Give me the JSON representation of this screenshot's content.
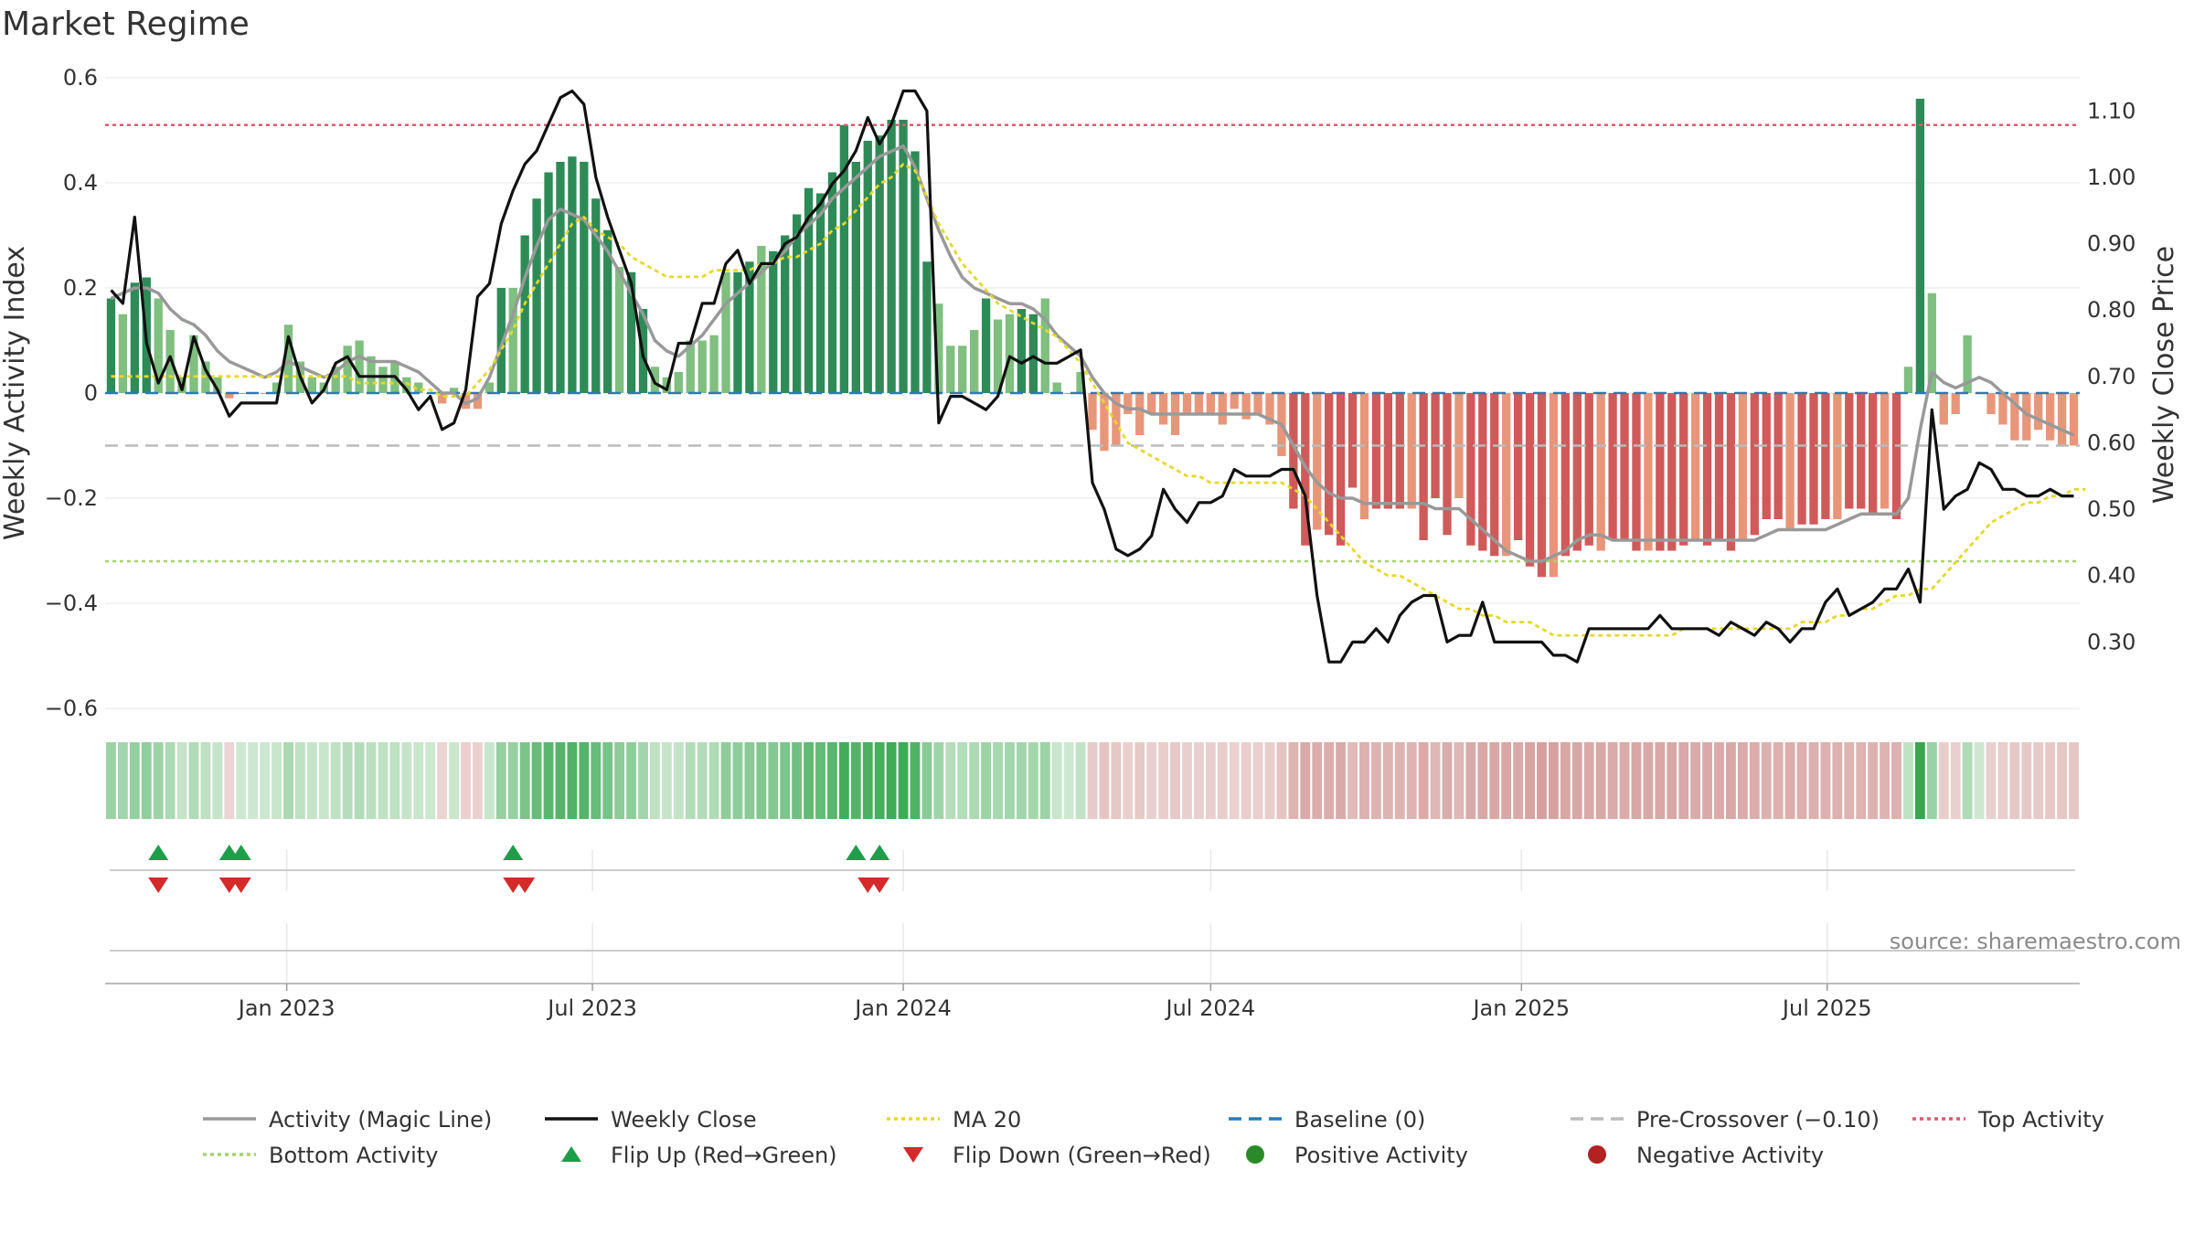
{
  "title": "Market Regime",
  "source": "source: sharemaestro.com",
  "colors": {
    "pos_strong": "#2e8b57",
    "pos_weak": "#7fbf7f",
    "neg_strong": "#d05a5a",
    "neg_weak": "#e8967a",
    "magic": "#999999",
    "close": "#111111",
    "ma20": "#e6d829",
    "baseline": "#2a7ab8",
    "precross": "#bbbbbb",
    "top": "#e05a6e",
    "bottom": "#a7d26b",
    "flip_up": "#1f9e4a",
    "flip_down": "#d42a2a",
    "pos_dot": "#2a8a2a",
    "neg_dot": "#b22222"
  },
  "chart_data": {
    "type": "bar",
    "start_date": "2022-09-19",
    "interval": "weekly",
    "y_left": {
      "label": "Weekly Activity Index",
      "range": [
        -0.6,
        0.6
      ],
      "ticks": [
        0.6,
        0.4,
        0.2,
        0,
        -0.2,
        -0.4,
        -0.6
      ],
      "tick_labels": [
        "0.6",
        "0.4",
        "0.2",
        "0",
        "−0.2",
        "−0.4",
        "−0.6"
      ]
    },
    "y_right": {
      "label": "Weekly Close Price",
      "range": [
        0.2,
        1.15
      ],
      "ticks": [
        1.1,
        1.0,
        0.9,
        0.8,
        0.7,
        0.6,
        0.5,
        0.4,
        0.3
      ],
      "tick_labels": [
        "1.10",
        "1.00",
        "0.90",
        "0.80",
        "0.70",
        "0.60",
        "0.50",
        "0.40",
        "0.30"
      ]
    },
    "x_ticks": [
      {
        "date": "2023-01-01",
        "label": "Jan 2023"
      },
      {
        "date": "2023-07-01",
        "label": "Jul 2023"
      },
      {
        "date": "2024-01-01",
        "label": "Jan 2024"
      },
      {
        "date": "2024-07-01",
        "label": "Jul 2024"
      },
      {
        "date": "2025-01-01",
        "label": "Jan 2025"
      },
      {
        "date": "2025-07-01",
        "label": "Jul 2025"
      }
    ],
    "reference_lines": {
      "baseline": 0,
      "pre_crossover": -0.1,
      "top_activity": 0.51,
      "bottom_activity": -0.32
    },
    "activity": [
      0.18,
      0.15,
      0.21,
      0.22,
      0.18,
      0.12,
      0.03,
      0.11,
      0.06,
      0.03,
      -0.01,
      0,
      0,
      0,
      0.02,
      0.13,
      0.06,
      0.03,
      0.02,
      0.05,
      0.09,
      0.1,
      0.07,
      0.05,
      0.06,
      0.03,
      0.02,
      0,
      -0.02,
      0.01,
      -0.03,
      -0.03,
      0.02,
      0.2,
      0.2,
      0.3,
      0.37,
      0.42,
      0.44,
      0.45,
      0.44,
      0.37,
      0.31,
      0.24,
      0.23,
      0.16,
      0.05,
      0.03,
      0.04,
      0.1,
      0.1,
      0.11,
      0.23,
      0.23,
      0.25,
      0.28,
      0.27,
      0.3,
      0.34,
      0.39,
      0.38,
      0.42,
      0.51,
      0.44,
      0.48,
      0.49,
      0.52,
      0.52,
      0.46,
      0.25,
      0.17,
      0.09,
      0.09,
      0.12,
      0.18,
      0.14,
      0.15,
      0.16,
      0.15,
      0.18,
      0.02,
      0,
      0.04,
      -0.07,
      -0.11,
      -0.1,
      -0.04,
      -0.08,
      -0.04,
      -0.06,
      -0.08,
      -0.04,
      -0.04,
      -0.04,
      -0.06,
      -0.03,
      -0.05,
      -0.04,
      -0.06,
      -0.12,
      -0.22,
      -0.29,
      -0.26,
      -0.27,
      -0.29,
      -0.18,
      -0.24,
      -0.22,
      -0.22,
      -0.22,
      -0.22,
      -0.28,
      -0.2,
      -0.27,
      -0.2,
      -0.29,
      -0.3,
      -0.31,
      -0.31,
      -0.28,
      -0.33,
      -0.35,
      -0.35,
      -0.31,
      -0.3,
      -0.29,
      -0.3,
      -0.28,
      -0.28,
      -0.3,
      -0.3,
      -0.3,
      -0.3,
      -0.29,
      -0.28,
      -0.29,
      -0.28,
      -0.3,
      -0.28,
      -0.27,
      -0.24,
      -0.24,
      -0.26,
      -0.25,
      -0.25,
      -0.24,
      -0.24,
      -0.22,
      -0.22,
      -0.23,
      -0.22,
      -0.24,
      0.05,
      0.56,
      0.19,
      -0.06,
      -0.04,
      0.11,
      0,
      -0.04,
      -0.06,
      -0.09,
      -0.09,
      -0.07,
      -0.09,
      -0.1,
      -0.1
    ],
    "weekly_close": [
      0.83,
      0.81,
      0.94,
      0.75,
      0.69,
      0.73,
      0.68,
      0.76,
      0.71,
      0.68,
      0.64,
      0.66,
      0.66,
      0.66,
      0.66,
      0.76,
      0.7,
      0.66,
      0.68,
      0.72,
      0.73,
      0.7,
      0.7,
      0.7,
      0.7,
      0.68,
      0.65,
      0.67,
      0.62,
      0.63,
      0.68,
      0.82,
      0.84,
      0.93,
      0.98,
      1.02,
      1.04,
      1.08,
      1.12,
      1.13,
      1.11,
      1.0,
      0.94,
      0.89,
      0.84,
      0.73,
      0.69,
      0.68,
      0.75,
      0.75,
      0.81,
      0.81,
      0.87,
      0.89,
      0.84,
      0.87,
      0.87,
      0.9,
      0.91,
      0.94,
      0.96,
      0.99,
      1.01,
      1.04,
      1.09,
      1.05,
      1.08,
      1.13,
      1.13,
      1.1,
      0.63,
      0.67,
      0.67,
      0.66,
      0.65,
      0.67,
      0.73,
      0.72,
      0.73,
      0.72,
      0.72,
      0.73,
      0.74,
      0.54,
      0.5,
      0.44,
      0.43,
      0.44,
      0.46,
      0.53,
      0.5,
      0.48,
      0.51,
      0.51,
      0.52,
      0.56,
      0.55,
      0.55,
      0.55,
      0.56,
      0.56,
      0.52,
      0.37,
      0.27,
      0.27,
      0.3,
      0.3,
      0.32,
      0.3,
      0.34,
      0.36,
      0.37,
      0.37,
      0.3,
      0.31,
      0.31,
      0.36,
      0.3,
      0.3,
      0.3,
      0.3,
      0.3,
      0.28,
      0.28,
      0.27,
      0.32,
      0.32,
      0.32,
      0.32,
      0.32,
      0.32,
      0.34,
      0.32,
      0.32,
      0.32,
      0.32,
      0.31,
      0.33,
      0.32,
      0.31,
      0.33,
      0.32,
      0.3,
      0.32,
      0.32,
      0.36,
      0.38,
      0.34,
      0.35,
      0.36,
      0.38,
      0.38,
      0.41,
      0.36,
      0.65,
      0.5,
      0.52,
      0.53,
      0.57,
      0.56,
      0.53,
      0.53,
      0.52,
      0.52,
      0.53,
      0.52,
      0.52
    ],
    "ma20": [
      0.7,
      0.7,
      0.7,
      0.7,
      0.7,
      0.7,
      0.7,
      0.7,
      0.7,
      0.7,
      0.7,
      0.7,
      0.7,
      0.7,
      0.7,
      0.7,
      0.7,
      0.7,
      0.7,
      0.7,
      0.7,
      0.69,
      0.69,
      0.69,
      0.69,
      0.69,
      0.68,
      0.68,
      0.67,
      0.67,
      0.67,
      0.69,
      0.71,
      0.74,
      0.77,
      0.81,
      0.84,
      0.87,
      0.9,
      0.93,
      0.94,
      0.92,
      0.91,
      0.9,
      0.88,
      0.87,
      0.86,
      0.85,
      0.85,
      0.85,
      0.85,
      0.86,
      0.86,
      0.86,
      0.86,
      0.87,
      0.87,
      0.88,
      0.88,
      0.89,
      0.9,
      0.92,
      0.93,
      0.95,
      0.97,
      0.99,
      1.0,
      1.02,
      1.01,
      0.97,
      0.93,
      0.9,
      0.87,
      0.85,
      0.83,
      0.81,
      0.8,
      0.79,
      0.78,
      0.77,
      0.76,
      0.74,
      0.72,
      0.69,
      0.66,
      0.63,
      0.6,
      0.59,
      0.58,
      0.57,
      0.56,
      0.55,
      0.55,
      0.54,
      0.54,
      0.54,
      0.54,
      0.54,
      0.54,
      0.54,
      0.53,
      0.52,
      0.5,
      0.48,
      0.46,
      0.44,
      0.42,
      0.41,
      0.4,
      0.4,
      0.39,
      0.38,
      0.37,
      0.36,
      0.35,
      0.35,
      0.34,
      0.34,
      0.33,
      0.33,
      0.33,
      0.32,
      0.31,
      0.31,
      0.31,
      0.31,
      0.31,
      0.31,
      0.31,
      0.31,
      0.31,
      0.31,
      0.31,
      0.32,
      0.32,
      0.32,
      0.32,
      0.32,
      0.32,
      0.32,
      0.32,
      0.32,
      0.32,
      0.33,
      0.33,
      0.33,
      0.34,
      0.34,
      0.35,
      0.35,
      0.36,
      0.37,
      0.37,
      0.38,
      0.38,
      0.4,
      0.42,
      0.44,
      0.46,
      0.48,
      0.49,
      0.5,
      0.51,
      0.51,
      0.52,
      0.52,
      0.53,
      0.53
    ],
    "magic_line": [
      0.18,
      0.19,
      0.2,
      0.2,
      0.19,
      0.16,
      0.14,
      0.13,
      0.11,
      0.08,
      0.06,
      0.05,
      0.04,
      0.03,
      0.04,
      0.06,
      0.05,
      0.04,
      0.03,
      0.04,
      0.06,
      0.07,
      0.06,
      0.06,
      0.06,
      0.05,
      0.04,
      0.02,
      0,
      0,
      -0.02,
      -0.01,
      0.03,
      0.09,
      0.15,
      0.22,
      0.28,
      0.33,
      0.35,
      0.34,
      0.33,
      0.3,
      0.27,
      0.23,
      0.19,
      0.15,
      0.1,
      0.08,
      0.07,
      0.09,
      0.11,
      0.14,
      0.17,
      0.19,
      0.21,
      0.23,
      0.25,
      0.27,
      0.3,
      0.32,
      0.34,
      0.37,
      0.39,
      0.41,
      0.43,
      0.45,
      0.46,
      0.47,
      0.43,
      0.37,
      0.31,
      0.26,
      0.22,
      0.2,
      0.19,
      0.18,
      0.17,
      0.17,
      0.16,
      0.14,
      0.11,
      0.09,
      0.07,
      0.03,
      0,
      -0.02,
      -0.03,
      -0.03,
      -0.04,
      -0.04,
      -0.04,
      -0.04,
      -0.04,
      -0.04,
      -0.04,
      -0.04,
      -0.04,
      -0.04,
      -0.05,
      -0.06,
      -0.1,
      -0.14,
      -0.17,
      -0.19,
      -0.2,
      -0.2,
      -0.21,
      -0.21,
      -0.21,
      -0.21,
      -0.21,
      -0.21,
      -0.22,
      -0.22,
      -0.22,
      -0.24,
      -0.26,
      -0.28,
      -0.3,
      -0.31,
      -0.32,
      -0.32,
      -0.31,
      -0.3,
      -0.28,
      -0.27,
      -0.27,
      -0.28,
      -0.28,
      -0.28,
      -0.28,
      -0.28,
      -0.28,
      -0.28,
      -0.28,
      -0.28,
      -0.28,
      -0.28,
      -0.28,
      -0.28,
      -0.27,
      -0.26,
      -0.26,
      -0.26,
      -0.26,
      -0.26,
      -0.25,
      -0.24,
      -0.23,
      -0.23,
      -0.23,
      -0.23,
      -0.2,
      -0.07,
      0.04,
      0.02,
      0.01,
      0.02,
      0.03,
      0.02,
      0,
      -0.02,
      -0.04,
      -0.05,
      -0.06,
      -0.07,
      -0.08
    ],
    "flip_up_weeks": [
      4,
      10,
      11,
      34,
      63,
      65
    ],
    "flip_down_weeks": [
      4,
      10,
      11,
      34,
      35,
      64,
      65
    ]
  },
  "legend": [
    {
      "label": "Activity (Magic Line)",
      "kind": "line",
      "color": "#999999",
      "dash": ""
    },
    {
      "label": "Weekly Close",
      "kind": "line",
      "color": "#111111",
      "dash": ""
    },
    {
      "label": "MA 20",
      "kind": "line",
      "color": "#e6d829",
      "dash": "4,4"
    },
    {
      "label": "Baseline (0)",
      "kind": "line",
      "color": "#2a7ab8",
      "dash": "14,8"
    },
    {
      "label": "Pre-Crossover (−0.10)",
      "kind": "line",
      "color": "#bbbbbb",
      "dash": "14,8"
    },
    {
      "label": "Top Activity",
      "kind": "line",
      "color": "#e05a6e",
      "dash": "4,4"
    },
    {
      "label": "Bottom Activity",
      "kind": "line",
      "color": "#a7d26b",
      "dash": "4,4"
    },
    {
      "label": "Flip Up (Red→Green)",
      "kind": "tri-up",
      "color": "#1f9e4a"
    },
    {
      "label": "Flip Down (Green→Red)",
      "kind": "tri-down",
      "color": "#d42a2a"
    },
    {
      "label": "Positive Activity",
      "kind": "dot",
      "color": "#2a8a2a"
    },
    {
      "label": "Negative Activity",
      "kind": "dot",
      "color": "#b22222"
    }
  ]
}
